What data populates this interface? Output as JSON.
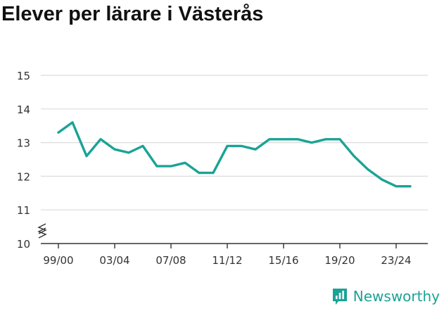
{
  "title": "Elever per lärare i Västerås",
  "brand": {
    "name": "Newsworthy",
    "icon": "newsworthy-logo-icon",
    "color": "#1aa396"
  },
  "chart_data": {
    "type": "line",
    "title": "Elever per lärare i Västerås",
    "xlabel": "",
    "ylabel": "",
    "x": [
      "99/00",
      "00/01",
      "01/02",
      "02/03",
      "03/04",
      "04/05",
      "05/06",
      "06/07",
      "07/08",
      "08/09",
      "09/10",
      "10/11",
      "11/12",
      "12/13",
      "13/14",
      "14/15",
      "15/16",
      "16/17",
      "17/18",
      "18/19",
      "19/20",
      "20/21",
      "21/22",
      "22/23",
      "23/24",
      "24/25"
    ],
    "x_tick_labels": [
      "99/00",
      "03/04",
      "07/08",
      "11/12",
      "15/16",
      "19/20",
      "23/24"
    ],
    "y_ticks": [
      10,
      11,
      12,
      13,
      14,
      15
    ],
    "ylim": [
      10,
      15
    ],
    "y_axis_break": true,
    "grid": true,
    "series": [
      {
        "color": "#1aa396",
        "values": [
          13.3,
          13.6,
          12.6,
          13.1,
          12.8,
          12.7,
          12.9,
          12.3,
          12.3,
          12.4,
          12.1,
          12.1,
          12.9,
          12.9,
          12.8,
          13.1,
          13.1,
          13.1,
          13.0,
          13.1,
          13.1,
          12.6,
          12.2,
          11.9,
          11.7,
          11.7
        ]
      }
    ]
  }
}
